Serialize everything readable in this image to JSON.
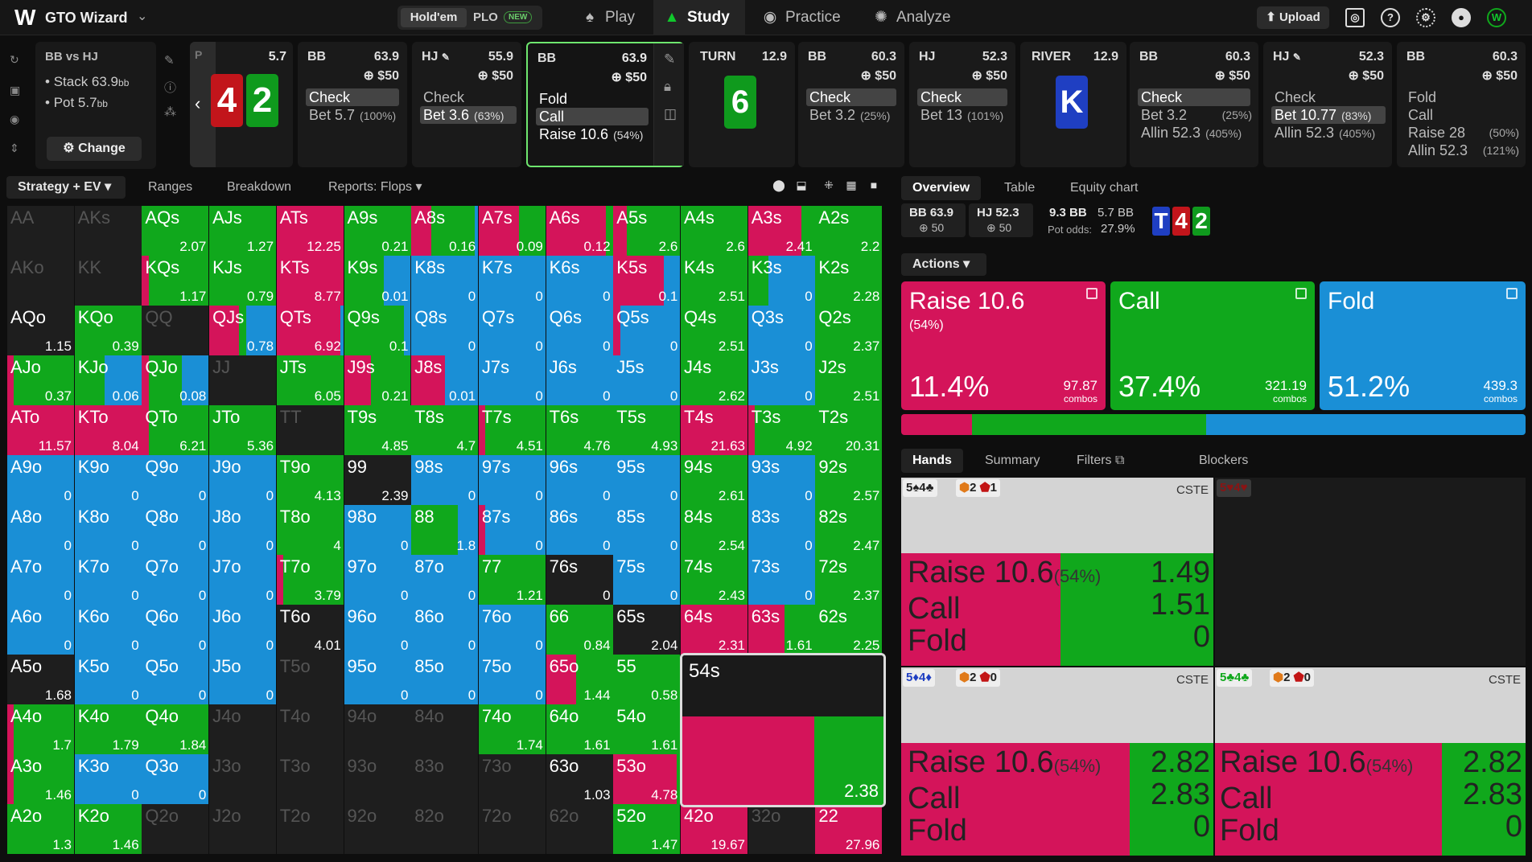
{
  "app": {
    "title": "GTO Wizard",
    "game_tabs": [
      "Hold'em",
      "PLO"
    ],
    "new_badge": "NEW",
    "nav": [
      {
        "label": "Play",
        "icon": "spade-icon"
      },
      {
        "label": "Study",
        "icon": "grad-cap-icon"
      },
      {
        "label": "Practice",
        "icon": "controller-icon"
      },
      {
        "label": "Analyze",
        "icon": "bulb-icon"
      }
    ],
    "upload": "Upload"
  },
  "spot": {
    "title": "BB vs HJ",
    "stack_label": "Stack 63.9",
    "stack_unit": "bb",
    "pot_label": "Pot 5.7",
    "pot_unit": "bb",
    "change": "Change"
  },
  "flop": {
    "label": "P",
    "pot": "5.7",
    "cards": [
      {
        "r": "4",
        "c": "red"
      },
      {
        "r": "2",
        "c": "green"
      }
    ]
  },
  "players": [
    {
      "name": "BB",
      "stack": "63.9",
      "chips": "$50",
      "actions": [
        {
          "t": "Check",
          "p": "",
          "chosen": true
        },
        {
          "t": "Bet 5.7",
          "p": "(100%)",
          "chosen": false
        }
      ]
    },
    {
      "name": "HJ",
      "stack": "55.9",
      "chips": "$50",
      "actions": [
        {
          "t": "Check",
          "p": "",
          "chosen": false
        },
        {
          "t": "Bet 3.6",
          "p": "(63%)",
          "chosen": true
        }
      ]
    },
    {
      "name": "BB",
      "stack": "63.9",
      "chips": "$50",
      "actions": [
        {
          "t": "Fold",
          "p": "",
          "chosen": false
        },
        {
          "t": "Call",
          "p": "",
          "chosen": true
        },
        {
          "t": "Raise 10.6",
          "p": "(54%)",
          "chosen": false
        }
      ]
    },
    {
      "name": "BB",
      "stack": "60.3",
      "chips": "$50",
      "actions": [
        {
          "t": "Check",
          "p": "",
          "chosen": true
        },
        {
          "t": "Bet 3.2",
          "p": "(25%)",
          "chosen": false
        }
      ]
    },
    {
      "name": "HJ",
      "stack": "52.3",
      "chips": "$50",
      "actions": [
        {
          "t": "Check",
          "p": "",
          "chosen": true
        },
        {
          "t": "Bet 13",
          "p": "(101%)",
          "chosen": false
        }
      ]
    },
    {
      "name": "BB",
      "stack": "60.3",
      "chips": "$50",
      "actions": [
        {
          "t": "Check",
          "p": "",
          "chosen": true
        },
        {
          "t": "Bet 3.2",
          "p": "(25%)",
          "chosen": false
        },
        {
          "t": "Allin 52.3",
          "p": "(405%)",
          "chosen": false
        }
      ]
    },
    {
      "name": "HJ",
      "stack": "52.3",
      "chips": "$50",
      "actions": [
        {
          "t": "Check",
          "p": "",
          "chosen": false
        },
        {
          "t": "Bet 10.77",
          "p": "(83%)",
          "chosen": true
        },
        {
          "t": "Allin 52.3",
          "p": "(405%)",
          "chosen": false
        }
      ]
    },
    {
      "name": "BB",
      "stack": "60.3",
      "chips": "$50",
      "actions": [
        {
          "t": "Fold",
          "p": "",
          "chosen": false
        },
        {
          "t": "Call",
          "p": "",
          "chosen": false
        },
        {
          "t": "Raise 28",
          "p": "(50%)",
          "chosen": false
        },
        {
          "t": "Allin 52.3",
          "p": "(121%)",
          "chosen": false
        }
      ]
    }
  ],
  "turn": {
    "name": "TURN",
    "pot": "12.9",
    "card": {
      "r": "6",
      "c": "green"
    }
  },
  "river": {
    "name": "RIVER",
    "pot": "12.9",
    "card": {
      "r": "K",
      "c": "blue"
    }
  },
  "left_tabs": {
    "strategy": "Strategy + EV",
    "ranges": "Ranges",
    "breakdown": "Breakdown",
    "reports": "Reports: Flops"
  },
  "colors": {
    "raise": "#d4145a",
    "call": "#10a81c",
    "fold": "#1a8fd6",
    "check": "#10a81c",
    "bg": "#1e1e1e"
  },
  "grid": [
    [
      [
        "AA",
        "",
        ""
      ],
      [
        "AKs",
        "",
        ""
      ],
      [
        "AQs",
        "2.07",
        "G100"
      ],
      [
        "AJs",
        "1.27",
        "G100"
      ],
      [
        "ATs",
        "12.25",
        "R100"
      ],
      [
        "A9s",
        "0.21",
        "G100"
      ],
      [
        "A8s",
        "0.16",
        "R30G65B5"
      ],
      [
        "A7s",
        "0.09",
        "R60G40"
      ],
      [
        "A6s",
        "0.12",
        "R90G10"
      ],
      [
        "A5s",
        "2.6",
        "R20G80"
      ],
      [
        "A4s",
        "2.6",
        "G100"
      ],
      [
        "A3s",
        "2.41",
        "R80G20"
      ],
      [
        "A2s",
        "2.2",
        "G100"
      ]
    ],
    [
      [
        "AKo",
        "",
        ""
      ],
      [
        "KK",
        "",
        ""
      ],
      [
        "KQs",
        "1.17",
        "R10G90"
      ],
      [
        "KJs",
        "0.79",
        "G100"
      ],
      [
        "KTs",
        "8.77",
        "R100"
      ],
      [
        "K9s",
        "0.01",
        "G60B40"
      ],
      [
        "K8s",
        "0",
        "B100"
      ],
      [
        "K7s",
        "0",
        "B100"
      ],
      [
        "K6s",
        "0",
        "B100"
      ],
      [
        "K5s",
        "0.1",
        "R75B25"
      ],
      [
        "K4s",
        "2.51",
        "G100"
      ],
      [
        "K3s",
        "0",
        "G30B70"
      ],
      [
        "K2s",
        "2.28",
        "G100"
      ]
    ],
    [
      [
        "AQo",
        "1.15",
        "D100"
      ],
      [
        "KQo",
        "0.39",
        "G100"
      ],
      [
        "QQ",
        "",
        ""
      ],
      [
        "QJs",
        "0.78",
        "R45G10B45"
      ],
      [
        "QTs",
        "6.92",
        "R95B5"
      ],
      [
        "Q9s",
        "0.1",
        "G90B10"
      ],
      [
        "Q8s",
        "0",
        "B100"
      ],
      [
        "Q7s",
        "0",
        "B100"
      ],
      [
        "Q6s",
        "0",
        "B100"
      ],
      [
        "Q5s",
        "0",
        "R10B90"
      ],
      [
        "Q4s",
        "2.51",
        "G100"
      ],
      [
        "Q3s",
        "0",
        "B100"
      ],
      [
        "Q2s",
        "2.37",
        "G100"
      ]
    ],
    [
      [
        "AJo",
        "0.37",
        "R10G90"
      ],
      [
        "KJo",
        "0.06",
        "G45B55"
      ],
      [
        "QJo",
        "0.08",
        "R10G50B40"
      ],
      [
        "JJ",
        "",
        ""
      ],
      [
        "JTs",
        "6.05",
        "G100"
      ],
      [
        "J9s",
        "0.21",
        "R40G60"
      ],
      [
        "J8s",
        "0.01",
        "R50B50"
      ],
      [
        "J7s",
        "0",
        "B100"
      ],
      [
        "J6s",
        "0",
        "B100"
      ],
      [
        "J5s",
        "0",
        "B100"
      ],
      [
        "J4s",
        "2.62",
        "G100"
      ],
      [
        "J3s",
        "0",
        "B100"
      ],
      [
        "J2s",
        "2.51",
        "G100"
      ]
    ],
    [
      [
        "ATo",
        "11.57",
        "R100"
      ],
      [
        "KTo",
        "8.04",
        "R100"
      ],
      [
        "QTo",
        "6.21",
        "R10G90"
      ],
      [
        "JTo",
        "5.36",
        "G100"
      ],
      [
        "TT",
        "",
        ""
      ],
      [
        "T9s",
        "4.85",
        "G100"
      ],
      [
        "T8s",
        "4.7",
        "G100"
      ],
      [
        "T7s",
        "4.51",
        "R10G90"
      ],
      [
        "T6s",
        "4.76",
        "G100"
      ],
      [
        "T5s",
        "4.93",
        "G100"
      ],
      [
        "T4s",
        "21.63",
        "R100"
      ],
      [
        "T3s",
        "4.92",
        "R10G90"
      ],
      [
        "T2s",
        "20.31",
        "G100"
      ]
    ],
    [
      [
        "A9o",
        "0",
        "B100"
      ],
      [
        "K9o",
        "0",
        "B100"
      ],
      [
        "Q9o",
        "0",
        "B100"
      ],
      [
        "J9o",
        "0",
        "B100"
      ],
      [
        "T9o",
        "4.13",
        "G100"
      ],
      [
        "99",
        "2.39",
        "D100"
      ],
      [
        "98s",
        "0",
        "B100"
      ],
      [
        "97s",
        "0",
        "B100"
      ],
      [
        "96s",
        "0",
        "B100"
      ],
      [
        "95s",
        "0",
        "B100"
      ],
      [
        "94s",
        "2.61",
        "G100"
      ],
      [
        "93s",
        "0",
        "B100"
      ],
      [
        "92s",
        "2.57",
        "G100"
      ]
    ],
    [
      [
        "A8o",
        "0",
        "B100"
      ],
      [
        "K8o",
        "0",
        "B100"
      ],
      [
        "Q8o",
        "0",
        "B100"
      ],
      [
        "J8o",
        "0",
        "B100"
      ],
      [
        "T8o",
        "4",
        "G100"
      ],
      [
        "98o",
        "0",
        "B100"
      ],
      [
        "88",
        "1.8",
        "G70B30"
      ],
      [
        "87s",
        "0",
        "R10B90"
      ],
      [
        "86s",
        "0",
        "B100"
      ],
      [
        "85s",
        "0",
        "B100"
      ],
      [
        "84s",
        "2.54",
        "G100"
      ],
      [
        "83s",
        "0",
        "B100"
      ],
      [
        "82s",
        "2.47",
        "G100"
      ]
    ],
    [
      [
        "A7o",
        "0",
        "B100"
      ],
      [
        "K7o",
        "0",
        "B100"
      ],
      [
        "Q7o",
        "0",
        "B100"
      ],
      [
        "J7o",
        "0",
        "B100"
      ],
      [
        "T7o",
        "3.79",
        "R10G90"
      ],
      [
        "97o",
        "0",
        "B100"
      ],
      [
        "87o",
        "0",
        "B100"
      ],
      [
        "77",
        "1.21",
        "G100"
      ],
      [
        "76s",
        "0",
        "D100"
      ],
      [
        "75s",
        "0",
        "B100"
      ],
      [
        "74s",
        "2.43",
        "G100"
      ],
      [
        "73s",
        "0",
        "B100"
      ],
      [
        "72s",
        "2.37",
        "G100"
      ]
    ],
    [
      [
        "A6o",
        "0",
        "B100"
      ],
      [
        "K6o",
        "0",
        "B100"
      ],
      [
        "Q6o",
        "0",
        "B100"
      ],
      [
        "J6o",
        "0",
        "B100"
      ],
      [
        "T6o",
        "4.01",
        "D100"
      ],
      [
        "96o",
        "0",
        "B100"
      ],
      [
        "86o",
        "0",
        "B100"
      ],
      [
        "76o",
        "0",
        "B100"
      ],
      [
        "66",
        "0.84",
        "G100"
      ],
      [
        "65s",
        "2.04",
        "D100"
      ],
      [
        "64s",
        "2.31",
        "R100"
      ],
      [
        "63s",
        "1.61",
        "R55G45"
      ],
      [
        "62s",
        "2.25",
        "G100"
      ]
    ],
    [
      [
        "A5o",
        "1.68",
        "D100"
      ],
      [
        "K5o",
        "0",
        "B100"
      ],
      [
        "Q5o",
        "0",
        "B100"
      ],
      [
        "J5o",
        "0",
        "B100"
      ],
      [
        "T5o",
        "",
        ""
      ],
      [
        "95o",
        "0",
        "B100"
      ],
      [
        "85o",
        "0",
        "B100"
      ],
      [
        "75o",
        "0",
        "B100"
      ],
      [
        "65o",
        "1.44",
        "R45G55"
      ],
      [
        "55",
        "0.58",
        "G100"
      ],
      [
        "54s",
        "",
        ""
      ],
      [
        "",
        ""
      ],
      [
        "",
        ""
      ]
    ],
    [
      [
        "A4o",
        "1.7",
        "R10G90"
      ],
      [
        "K4o",
        "1.79",
        "G100"
      ],
      [
        "Q4o",
        "1.84",
        "G100"
      ],
      [
        "J4o",
        "",
        ""
      ],
      [
        "T4o",
        "",
        ""
      ],
      [
        "94o",
        "",
        ""
      ],
      [
        "84o",
        "",
        ""
      ],
      [
        "74o",
        "1.74",
        "G100"
      ],
      [
        "64o",
        "1.61",
        "G100"
      ],
      [
        "54o",
        "1.61",
        "G100"
      ],
      [
        "",
        ""
      ],
      [
        "",
        ""
      ],
      [
        "",
        ""
      ]
    ],
    [
      [
        "A3o",
        "1.46",
        "R10G90"
      ],
      [
        "K3o",
        "0",
        "B100"
      ],
      [
        "Q3o",
        "0",
        "B100"
      ],
      [
        "J3o",
        "",
        ""
      ],
      [
        "T3o",
        "",
        ""
      ],
      [
        "93o",
        "",
        ""
      ],
      [
        "83o",
        "",
        ""
      ],
      [
        "73o",
        "",
        ""
      ],
      [
        "63o",
        "1.03",
        "D100"
      ],
      [
        "53o",
        "4.78",
        "R95G5"
      ],
      [
        "",
        ""
      ],
      [
        "",
        ""
      ],
      [
        "",
        ""
      ]
    ],
    [
      [
        "A2o",
        "1.3",
        "G100"
      ],
      [
        "K2o",
        "1.46",
        "G100"
      ],
      [
        "Q2o",
        "",
        ""
      ],
      [
        "J2o",
        "",
        ""
      ],
      [
        "T2o",
        "",
        ""
      ],
      [
        "92o",
        "",
        ""
      ],
      [
        "82o",
        "",
        ""
      ],
      [
        "72o",
        "",
        ""
      ],
      [
        "62o",
        "",
        ""
      ],
      [
        "52o",
        "1.47",
        "G100"
      ],
      [
        "42o",
        "19.67",
        "R100"
      ],
      [
        "32o",
        "",
        ""
      ],
      [
        "22",
        "27.96",
        "R100"
      ]
    ]
  ],
  "bigcell": {
    "label": "54s",
    "ev": "2.38"
  },
  "right_tabs": {
    "overview": "Overview",
    "table": "Table",
    "equity": "Equity chart"
  },
  "overview": {
    "bb": "BB 63.9",
    "bb_chips": "50",
    "hj": "HJ 52.3",
    "hj_chips": "50",
    "pot": "9.3 BB",
    "bet": "5.7 BB",
    "pot_odds_label": "Pot odds:",
    "pot_odds": "27.9%",
    "board": [
      {
        "r": "T",
        "c": "blue"
      },
      {
        "r": "4",
        "c": "red"
      },
      {
        "r": "2",
        "c": "green"
      }
    ]
  },
  "actions_dd": "Actions",
  "action_cards": [
    {
      "name": "Raise 10.6",
      "sub": "(54%)",
      "pct": "11.4%",
      "combos": "97.87",
      "combos_label": "combos",
      "color": "#d4145a"
    },
    {
      "name": "Call",
      "sub": "",
      "pct": "37.4%",
      "combos": "321.19",
      "combos_label": "combos",
      "color": "#10a81c"
    },
    {
      "name": "Fold",
      "sub": "",
      "pct": "51.2%",
      "combos": "439.3",
      "combos_label": "combos",
      "color": "#1a8fd6"
    }
  ],
  "freq": [
    0.114,
    0.374,
    0.512
  ],
  "hand_tabs": {
    "hands": "Hands",
    "summary": "Summary",
    "filters": "Filters",
    "blockers": "Blockers"
  },
  "hands": [
    {
      "cards": "5♠4♣",
      "blk1": "2",
      "blk2": "1",
      "cste": "CSTE",
      "raise": "Raise 10.6",
      "raise_pct": "(54%)",
      "call": "Call",
      "fold": "Fold",
      "v1": "1.49",
      "v2": "1.51",
      "v3": "0"
    },
    {
      "cards": "5♥4♥",
      "blk1": "",
      "blk2": "",
      "cste": "",
      "empty": true
    },
    {
      "cards": "5♦4♦",
      "blk1": "2",
      "blk2": "0",
      "cste": "CSTE",
      "raise": "Raise 10.6",
      "raise_pct": "(54%)",
      "call": "Call",
      "fold": "Fold",
      "v1": "2.82",
      "v2": "2.83",
      "v3": "0"
    },
    {
      "cards": "5♣4♣",
      "blk1": "2",
      "blk2": "0",
      "cste": "CSTE",
      "raise": "Raise 10.6",
      "raise_pct": "(54%)",
      "call": "Call",
      "fold": "Fold",
      "v1": "2.82",
      "v2": "2.83",
      "v3": "0"
    }
  ]
}
